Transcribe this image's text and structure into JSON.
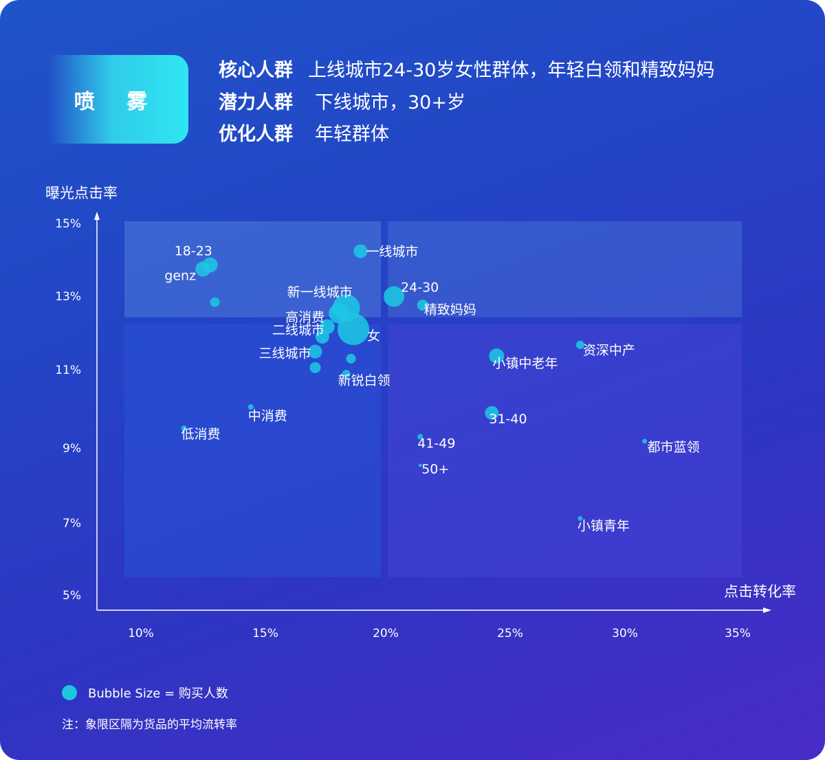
{
  "header": {
    "tag": "喷 雾",
    "rows": [
      {
        "key": "核心人群",
        "value": "上线城市24-30岁女性群体，年轻白领和精致妈妈"
      },
      {
        "key": "潜力人群",
        "value": "下线城市，30+岁"
      },
      {
        "key": "优化人群",
        "value": "年轻群体"
      }
    ]
  },
  "chart_data": {
    "type": "scatter",
    "ylabel": "曝光点击率",
    "xlabel": "点击转化率",
    "xticks": [
      "10%",
      "15%",
      "20%",
      "25%",
      "30%",
      "35%"
    ],
    "yticks": [
      "15%",
      "13%",
      "11%",
      "9%",
      "7%",
      "5%"
    ],
    "xlim": [
      0.08,
      0.36
    ],
    "ylim": [
      0.05,
      0.15
    ],
    "points": [
      {
        "label": "18-23",
        "x": 0.129,
        "y": 0.1388,
        "size": 22
      },
      {
        "label": "genz",
        "x": 0.126,
        "y": 0.1377,
        "size": 22
      },
      {
        "label": "",
        "x": 0.131,
        "y": 0.1288,
        "size": 14
      },
      {
        "label": "一线城市",
        "x": 0.192,
        "y": 0.1425,
        "size": 20
      },
      {
        "label": "新一线城市",
        "x": 0.186,
        "y": 0.1272,
        "size": 40
      },
      {
        "label": "高消费",
        "x": 0.183,
        "y": 0.1258,
        "size": 30
      },
      {
        "label": "女",
        "x": 0.189,
        "y": 0.1215,
        "size": 46
      },
      {
        "label": "二线城市",
        "x": 0.178,
        "y": 0.1222,
        "size": 22
      },
      {
        "label": "",
        "x": 0.176,
        "y": 0.1195,
        "size": 20
      },
      {
        "label": "三线城市",
        "x": 0.173,
        "y": 0.1155,
        "size": 20
      },
      {
        "label": "",
        "x": 0.188,
        "y": 0.1136,
        "size": 14
      },
      {
        "label": "",
        "x": 0.173,
        "y": 0.1112,
        "size": 16
      },
      {
        "label": "新锐白领",
        "x": 0.186,
        "y": 0.1095,
        "size": 12
      },
      {
        "label": "24-30",
        "x": 0.206,
        "y": 0.1303,
        "size": 30
      },
      {
        "label": "精致妈妈",
        "x": 0.218,
        "y": 0.128,
        "size": 16
      },
      {
        "label": "小镇中老年",
        "x": 0.249,
        "y": 0.1143,
        "size": 22
      },
      {
        "label": "资深中产",
        "x": 0.284,
        "y": 0.1173,
        "size": 12
      },
      {
        "label": "中消费",
        "x": 0.146,
        "y": 0.1006,
        "size": 8
      },
      {
        "label": "低消费",
        "x": 0.118,
        "y": 0.0949,
        "size": 8
      },
      {
        "label": "31-40",
        "x": 0.247,
        "y": 0.099,
        "size": 20
      },
      {
        "label": "41-49",
        "x": 0.217,
        "y": 0.0926,
        "size": 8
      },
      {
        "label": "都市蓝领",
        "x": 0.311,
        "y": 0.0914,
        "size": 7
      },
      {
        "label": "50+",
        "x": 0.217,
        "y": 0.0849,
        "size": 5
      },
      {
        "label": "小镇青年",
        "x": 0.284,
        "y": 0.0706,
        "size": 7
      }
    ],
    "quadrant_divider": {
      "x": 0.202,
      "y": 0.1238
    },
    "bubble_color": "#1ec5e3",
    "quadrant_color": "#5a8de0"
  },
  "legend": {
    "text": "Bubble Size = 购买人数"
  },
  "note": "注：象限区隔为货品的平均流转率"
}
